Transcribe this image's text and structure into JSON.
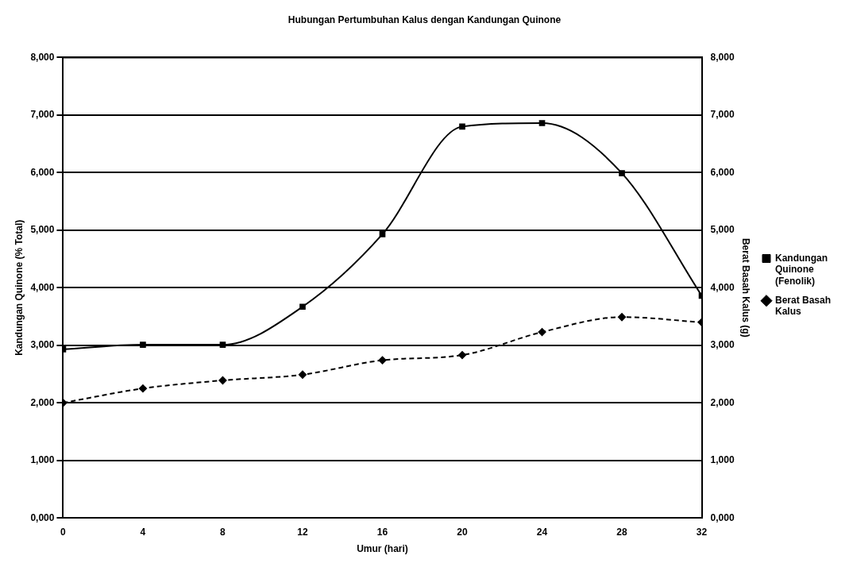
{
  "chart_data": {
    "type": "line",
    "title": "Hubungan Pertumbuhan Kalus dengan Kandungan Quinone",
    "xlabel": "Umur (hari)",
    "ylabel": "Kandungan Quinone (% Total)",
    "y2label": "Berat Basah Kalus (g)",
    "x": [
      0,
      4,
      8,
      12,
      16,
      20,
      24,
      28,
      32
    ],
    "xlim": [
      0,
      32
    ],
    "xticks": [
      0,
      4,
      8,
      12,
      16,
      20,
      24,
      28,
      32
    ],
    "ylim": [
      0,
      8
    ],
    "yticks": [
      {
        "value": 0,
        "label": "0,000"
      },
      {
        "value": 1,
        "label": "1,000"
      },
      {
        "value": 2,
        "label": "2,000"
      },
      {
        "value": 3,
        "label": "3,000"
      },
      {
        "value": 4,
        "label": "4,000"
      },
      {
        "value": 5,
        "label": "5,000"
      },
      {
        "value": 6,
        "label": "6,000"
      },
      {
        "value": 7,
        "label": "7,000"
      },
      {
        "value": 8,
        "label": "8,000"
      }
    ],
    "y2lim": [
      0,
      8
    ],
    "y2ticks": [
      {
        "value": 0,
        "label": "0,000"
      },
      {
        "value": 1,
        "label": "1,000"
      },
      {
        "value": 2,
        "label": "2,000"
      },
      {
        "value": 3,
        "label": "3,000"
      },
      {
        "value": 4,
        "label": "4,000"
      },
      {
        "value": 5,
        "label": "5,000"
      },
      {
        "value": 6,
        "label": "6,000"
      },
      {
        "value": 7,
        "label": "7,000"
      },
      {
        "value": 8,
        "label": "8,000"
      }
    ],
    "series": [
      {
        "name": "Kandungan Quinone (Fenolik)",
        "color": "#000000",
        "marker": "square",
        "line_style": "solid",
        "values": [
          2.93,
          3.01,
          3.01,
          3.67,
          4.93,
          6.8,
          6.86,
          5.99,
          3.86
        ]
      },
      {
        "name": "Berat Basah Kalus",
        "color": "#000000",
        "marker": "diamond",
        "line_style": "dashed",
        "axis": "y2",
        "values": [
          2.0,
          2.25,
          2.39,
          2.49,
          2.74,
          2.83,
          3.23,
          3.49,
          3.4
        ]
      }
    ],
    "grid": "y",
    "legend": "right"
  }
}
